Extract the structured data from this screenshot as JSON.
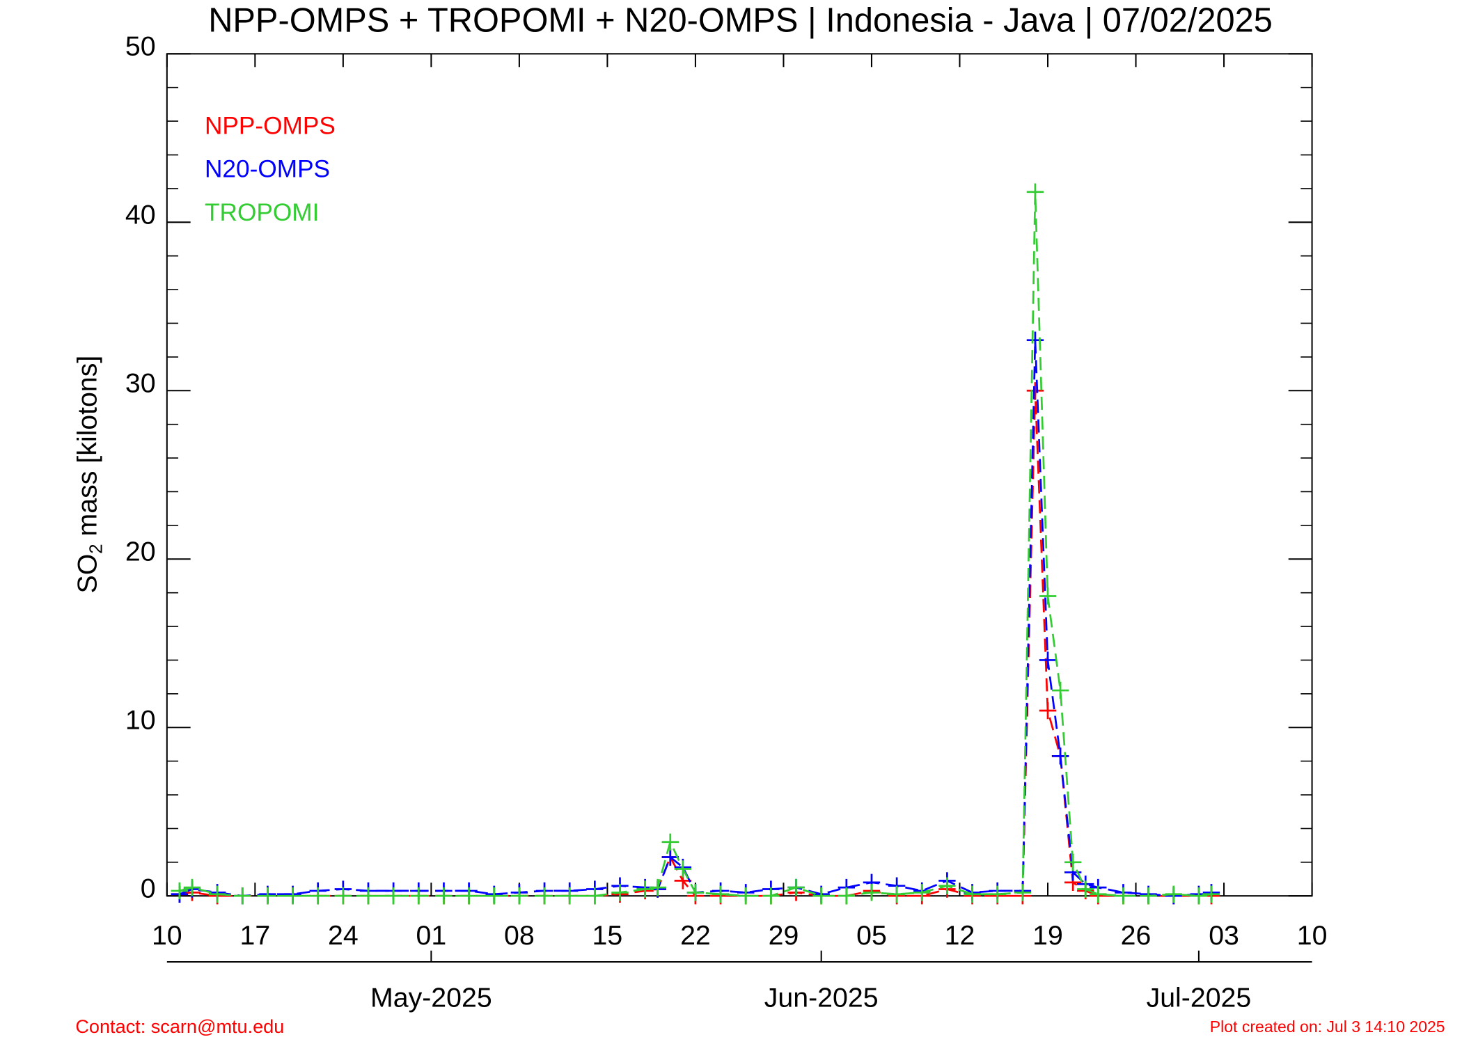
{
  "chart_data": {
    "type": "line",
    "title": "NPP-OMPS + TROPOMI + N20-OMPS | Indonesia - Java | 07/02/2025",
    "ylabel": {
      "main": "SO",
      "sub": "2",
      "rest": " mass [kilotons]"
    },
    "x": [
      "2025-04-11",
      "2025-04-12",
      "2025-04-14",
      "2025-04-16",
      "2025-04-18",
      "2025-04-20",
      "2025-04-22",
      "2025-04-24",
      "2025-04-26",
      "2025-04-28",
      "2025-04-30",
      "2025-05-02",
      "2025-05-04",
      "2025-05-06",
      "2025-05-08",
      "2025-05-10",
      "2025-05-12",
      "2025-05-14",
      "2025-05-16",
      "2025-05-18",
      "2025-05-19",
      "2025-05-20",
      "2025-05-21",
      "2025-05-22",
      "2025-05-24",
      "2025-05-26",
      "2025-05-28",
      "2025-05-30",
      "2025-06-01",
      "2025-06-03",
      "2025-06-05",
      "2025-06-07",
      "2025-06-09",
      "2025-06-11",
      "2025-06-13",
      "2025-06-15",
      "2025-06-17",
      "2025-06-18",
      "2025-06-19",
      "2025-06-20",
      "2025-06-21",
      "2025-06-22",
      "2025-06-23",
      "2025-06-25",
      "2025-06-27",
      "2025-06-29",
      "2025-07-01",
      "2025-07-02"
    ],
    "series": [
      {
        "name": "NPP-OMPS",
        "color": "#ff0000",
        "values": [
          0.1,
          0.2,
          0,
          0,
          0,
          0,
          0,
          0,
          0,
          0,
          0,
          0,
          0,
          0,
          0,
          0,
          0,
          0,
          0.1,
          0.3,
          0.4,
          2.3,
          0.9,
          0,
          0,
          0,
          0,
          0.2,
          0,
          0,
          0.3,
          0,
          0,
          0.4,
          0,
          0,
          0,
          30,
          11,
          8.3,
          0.8,
          0.3,
          0,
          0,
          0,
          0,
          0,
          0
        ]
      },
      {
        "name": "N20-OMPS",
        "color": "#0000ff",
        "values": [
          0.1,
          0.4,
          0.2,
          0,
          0.1,
          0.1,
          0.3,
          0.4,
          0.3,
          0.3,
          0.3,
          0.3,
          0.3,
          0.1,
          0.2,
          0.3,
          0.3,
          0.4,
          0.6,
          0.5,
          0.4,
          2.3,
          1.7,
          0.2,
          0.3,
          0.2,
          0.4,
          0.5,
          0.1,
          0.5,
          0.8,
          0.6,
          0.3,
          0.9,
          0.2,
          0.3,
          0.3,
          33,
          14,
          8.3,
          1.4,
          0.7,
          0.5,
          0.2,
          0.1,
          0,
          0.1,
          0.2
        ]
      },
      {
        "name": "TROPOMI",
        "color": "#33cc33",
        "values": [
          0.3,
          0.5,
          0.1,
          0,
          0,
          0,
          0,
          0,
          0,
          0,
          0,
          0,
          0,
          0,
          0,
          0,
          0,
          0,
          0.2,
          0.4,
          0.5,
          3.2,
          1.6,
          0.2,
          0.1,
          0,
          0,
          0.5,
          0,
          0,
          0.2,
          0.1,
          0.2,
          0.6,
          0.1,
          0.1,
          0.2,
          41.8,
          17.8,
          12.2,
          2,
          0.4,
          0.1,
          0,
          0,
          0.1,
          0,
          0.1
        ]
      }
    ],
    "xlim": [
      "2025-04-10",
      "2025-07-10"
    ],
    "xticks": [
      {
        "value": "2025-04-10",
        "label": "10"
      },
      {
        "value": "2025-04-17",
        "label": "17"
      },
      {
        "value": "2025-04-24",
        "label": "24"
      },
      {
        "value": "2025-05-01",
        "label": "01"
      },
      {
        "value": "2025-05-08",
        "label": "08"
      },
      {
        "value": "2025-05-15",
        "label": "15"
      },
      {
        "value": "2025-05-22",
        "label": "22"
      },
      {
        "value": "2025-05-29",
        "label": "29"
      },
      {
        "value": "2025-06-05",
        "label": "05"
      },
      {
        "value": "2025-06-12",
        "label": "12"
      },
      {
        "value": "2025-06-19",
        "label": "19"
      },
      {
        "value": "2025-06-26",
        "label": "26"
      },
      {
        "value": "2025-07-03",
        "label": "03"
      },
      {
        "value": "2025-07-10",
        "label": "10"
      }
    ],
    "monthticks": [
      {
        "value": "2025-05-01",
        "label": "May-2025"
      },
      {
        "value": "2025-06-01",
        "label": "Jun-2025"
      },
      {
        "value": "2025-07-01",
        "label": "Jul-2025"
      }
    ],
    "ylim": [
      0,
      50
    ],
    "yticks": [
      0,
      10,
      20,
      30,
      40,
      50
    ],
    "yminorticks": [
      2,
      4,
      6,
      8,
      12,
      14,
      16,
      18,
      22,
      24,
      26,
      28,
      32,
      34,
      36,
      38,
      42,
      44,
      46,
      48
    ],
    "line_style": "dashed",
    "marker": "plus",
    "legend": "upper left",
    "contact": "Contact: scarn@mtu.edu",
    "created": "Plot created on: Jul  3 14:10 2025"
  }
}
